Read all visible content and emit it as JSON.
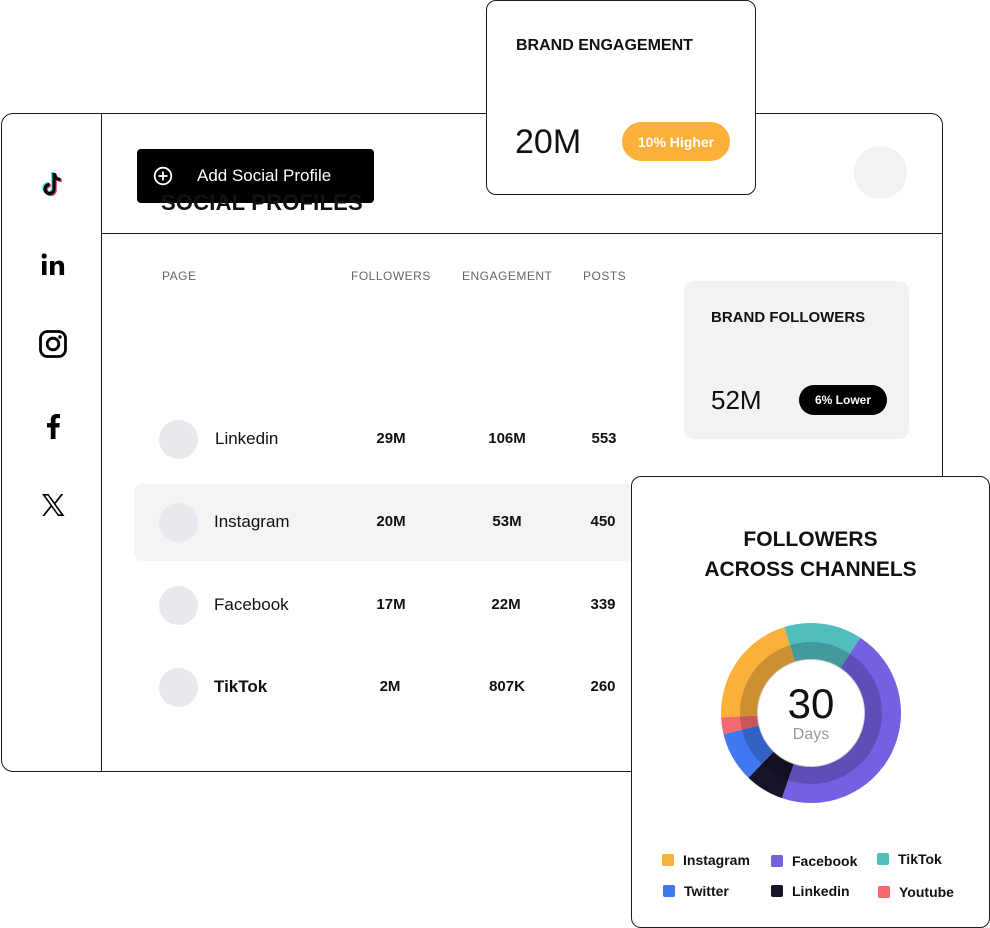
{
  "header": {
    "add_button_label": "Add Social Profile"
  },
  "sidebar": {
    "items": [
      {
        "icon": "tiktok-icon"
      },
      {
        "icon": "linkedin-icon"
      },
      {
        "icon": "instagram-icon"
      },
      {
        "icon": "facebook-icon"
      },
      {
        "icon": "x-twitter-icon"
      }
    ]
  },
  "profiles": {
    "title": "SOCIAL PROFILES",
    "columns": [
      "PAGE",
      "FOLLOWERS",
      "ENGAGEMENT",
      "POSTS"
    ],
    "rows": [
      {
        "page": "Linkedin",
        "followers": "29M",
        "engagement": "106M",
        "posts": "553"
      },
      {
        "page": "Instagram",
        "followers": "20M",
        "engagement": "53M",
        "posts": "450"
      },
      {
        "page": "Facebook",
        "followers": "17M",
        "engagement": "22M",
        "posts": "339"
      },
      {
        "page": "TikTok",
        "followers": "2M",
        "engagement": "807K",
        "posts": "260"
      }
    ]
  },
  "brand_followers": {
    "title": "BRAND FOLLOWERS",
    "value": "52M",
    "badge": "6% Lower",
    "badge_color": "#000000"
  },
  "brand_engagement": {
    "title": "BRAND ENGAGEMENT",
    "value": "20M",
    "badge": "10% Higher",
    "badge_color": "#fbb03b"
  },
  "channels": {
    "title_line1": "FOLLOWERS",
    "title_line2": "ACROSS CHANNELS",
    "center_value": "30",
    "center_label": "Days",
    "legend": [
      {
        "label": "Instagram",
        "color": "#fbb03b"
      },
      {
        "label": "Facebook",
        "color": "#7460e1"
      },
      {
        "label": "TikTok",
        "color": "#52bcbf"
      },
      {
        "label": "Twitter",
        "color": "#3f78f0"
      },
      {
        "label": "Linkedin",
        "color": "#16142b"
      },
      {
        "label": "Youtube",
        "color": "#f46a6f"
      }
    ]
  },
  "chart_data": {
    "type": "pie",
    "title": "FOLLOWERS ACROSS CHANNELS",
    "categories": [
      "Facebook",
      "Linkedin",
      "Twitter",
      "Youtube",
      "Instagram",
      "TikTok"
    ],
    "values": [
      46,
      7,
      9,
      3,
      21,
      14
    ],
    "colors": [
      "#7460e1",
      "#16142b",
      "#3f78f0",
      "#f46a6f",
      "#fbb03b",
      "#52bcbf"
    ],
    "legend_position": "bottom"
  }
}
